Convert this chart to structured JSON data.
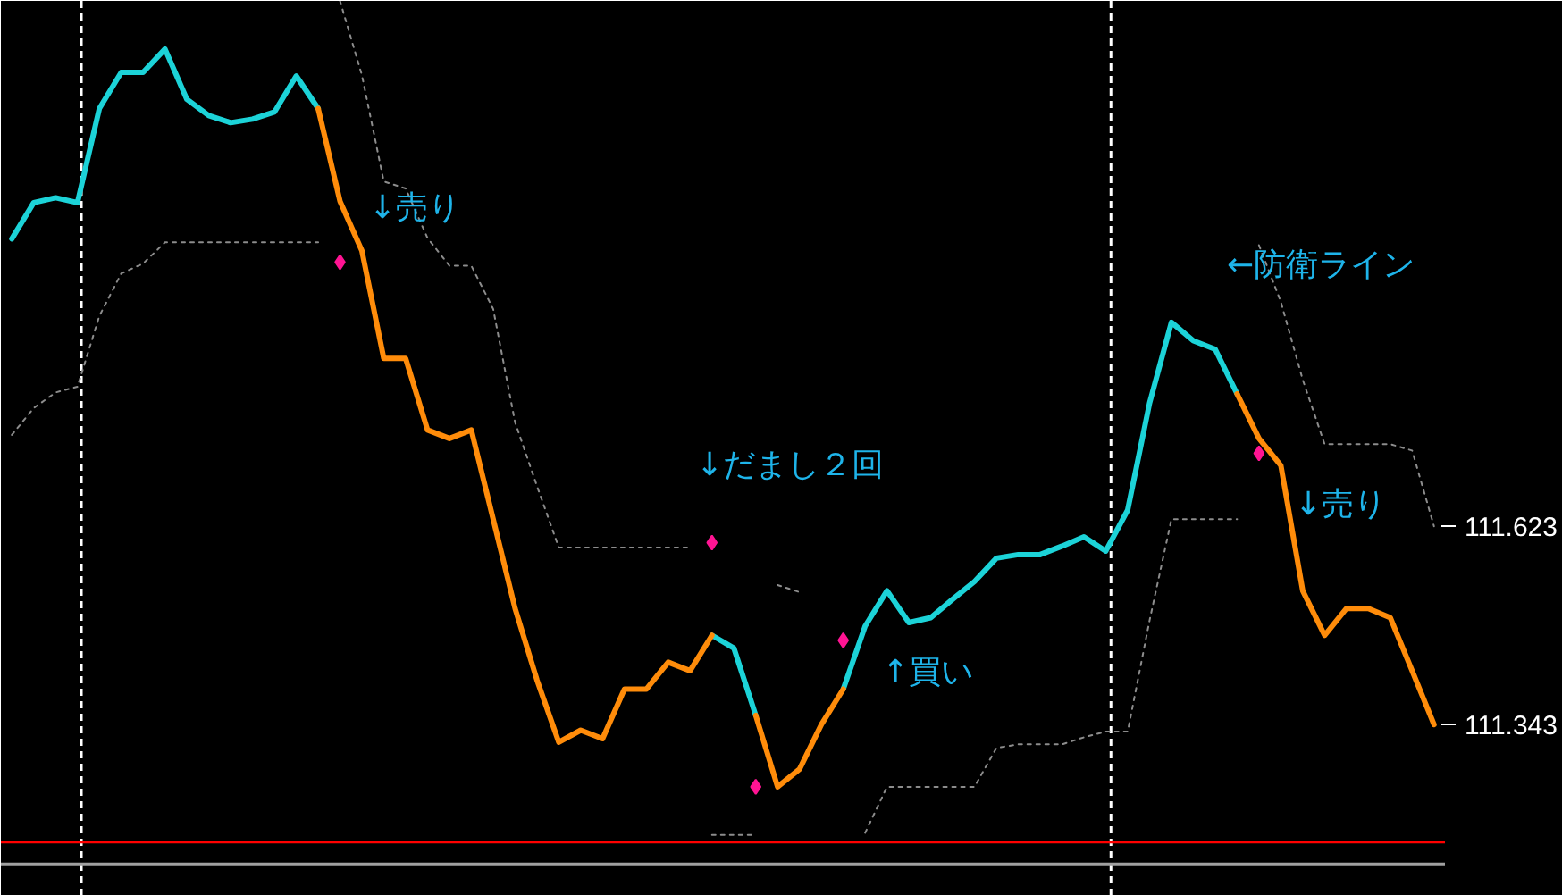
{
  "chart_data": {
    "type": "line",
    "tick_labels": "y",
    "grid": false,
    "ylim": [
      111.101,
      112.365
    ],
    "yticks": [
      111.623,
      111.343
    ],
    "categories": [
      null,
      null,
      null,
      null,
      null,
      null,
      null,
      null,
      null,
      null,
      null,
      null,
      null,
      null,
      null,
      null,
      null,
      null,
      null,
      null,
      null,
      null,
      null,
      null,
      null,
      null,
      null,
      null,
      null,
      null,
      null,
      null,
      null,
      null,
      null,
      null,
      null,
      null,
      null,
      null,
      null,
      null,
      null,
      null,
      null,
      null,
      null,
      null,
      null,
      null,
      null,
      null,
      null,
      null,
      null,
      null,
      null,
      null,
      null,
      null,
      null,
      null,
      null,
      null,
      null,
      null
    ],
    "series": [
      {
        "color": "#1cd3d8",
        "line_style": "solid",
        "values": [
          112.029,
          112.08,
          112.087,
          112.08,
          112.213,
          112.264,
          112.264,
          112.297,
          112.226,
          112.203,
          112.193,
          112.198,
          112.208,
          112.259,
          112.213,
          null,
          null,
          null,
          null,
          null,
          null,
          null,
          null,
          null,
          null,
          null,
          null,
          null,
          null,
          null,
          null,
          null,
          111.469,
          111.451,
          111.356,
          null,
          null,
          null,
          111.393,
          111.482,
          111.532,
          111.487,
          111.494,
          111.52,
          111.545,
          111.578,
          111.583,
          111.583,
          111.595,
          111.608,
          111.588,
          111.646,
          111.797,
          111.911,
          111.885,
          111.873,
          111.81,
          null,
          null,
          null,
          null,
          null,
          null,
          null,
          null,
          null
        ]
      },
      {
        "color": "#ff8c0a",
        "line_style": "solid",
        "values": [
          null,
          null,
          null,
          null,
          null,
          null,
          null,
          null,
          null,
          null,
          null,
          null,
          null,
          null,
          112.213,
          112.082,
          112.012,
          111.86,
          111.86,
          111.759,
          111.747,
          111.759,
          111.633,
          111.507,
          111.406,
          111.318,
          111.335,
          111.323,
          111.393,
          111.393,
          111.431,
          111.419,
          111.469,
          null,
          111.356,
          111.255,
          111.28,
          111.343,
          111.393,
          null,
          null,
          null,
          null,
          null,
          null,
          null,
          null,
          null,
          null,
          null,
          null,
          null,
          null,
          null,
          null,
          null,
          111.81,
          111.747,
          111.709,
          111.532,
          111.469,
          111.507,
          111.507,
          111.494,
          111.419,
          111.343
        ]
      },
      {
        "color": "#8c8c8c",
        "line_style": "dotted",
        "values": [
          null,
          null,
          null,
          null,
          null,
          null,
          null,
          null,
          null,
          null,
          null,
          null,
          null,
          null,
          null,
          112.365,
          112.26,
          112.11,
          112.1,
          112.03,
          111.991,
          111.991,
          111.93,
          111.77,
          111.68,
          111.593,
          111.593,
          111.593,
          111.593,
          111.593,
          111.593,
          111.593,
          null,
          null,
          null,
          111.54,
          111.53,
          null,
          null,
          null,
          null,
          null,
          null,
          null,
          null,
          null,
          null,
          null,
          null,
          null,
          null,
          null,
          null,
          null,
          null,
          null,
          null,
          112.02,
          111.94,
          111.83,
          111.739,
          111.739,
          111.739,
          111.739,
          111.73,
          111.623
        ]
      },
      {
        "color": "#8c8c8c",
        "line_style": "dotted",
        "values": [
          111.752,
          111.79,
          111.812,
          111.82,
          111.92,
          111.98,
          111.994,
          112.024,
          112.024,
          112.024,
          112.024,
          112.024,
          112.024,
          112.024,
          112.024,
          null,
          null,
          null,
          null,
          null,
          null,
          null,
          null,
          null,
          null,
          null,
          null,
          null,
          null,
          null,
          null,
          null,
          111.187,
          111.187,
          111.187,
          null,
          null,
          null,
          null,
          111.19,
          111.255,
          111.255,
          111.255,
          111.255,
          111.255,
          111.31,
          111.315,
          111.315,
          111.315,
          111.325,
          111.333,
          111.333,
          111.49,
          111.633,
          111.633,
          111.633,
          111.633,
          null,
          null,
          null,
          null,
          null,
          null,
          null,
          null,
          null
        ]
      },
      {
        "type": "scatter",
        "color": "#ff1493",
        "marker": "diamond",
        "values": [
          null,
          null,
          null,
          null,
          null,
          null,
          null,
          null,
          null,
          null,
          null,
          null,
          null,
          null,
          null,
          111.996,
          null,
          null,
          null,
          null,
          null,
          null,
          null,
          null,
          null,
          null,
          null,
          null,
          null,
          null,
          null,
          null,
          111.6,
          null,
          111.255,
          null,
          null,
          null,
          111.462,
          null,
          null,
          null,
          null,
          null,
          null,
          null,
          null,
          null,
          null,
          null,
          null,
          null,
          null,
          null,
          null,
          null,
          null,
          111.726,
          null,
          null,
          null,
          null,
          null,
          null,
          null,
          null
        ]
      }
    ],
    "ref_lines": [
      {
        "axis": "y",
        "value": 111.177,
        "color": "#ff0000",
        "line_style": "solid"
      },
      {
        "axis": "y",
        "value": 111.146,
        "color": "#a0a0a0",
        "line_style": "solid"
      }
    ],
    "annotations": [
      "↓売り",
      "↓だまし２回",
      "↑買い",
      "←防衛ライン",
      "↓売り"
    ]
  }
}
